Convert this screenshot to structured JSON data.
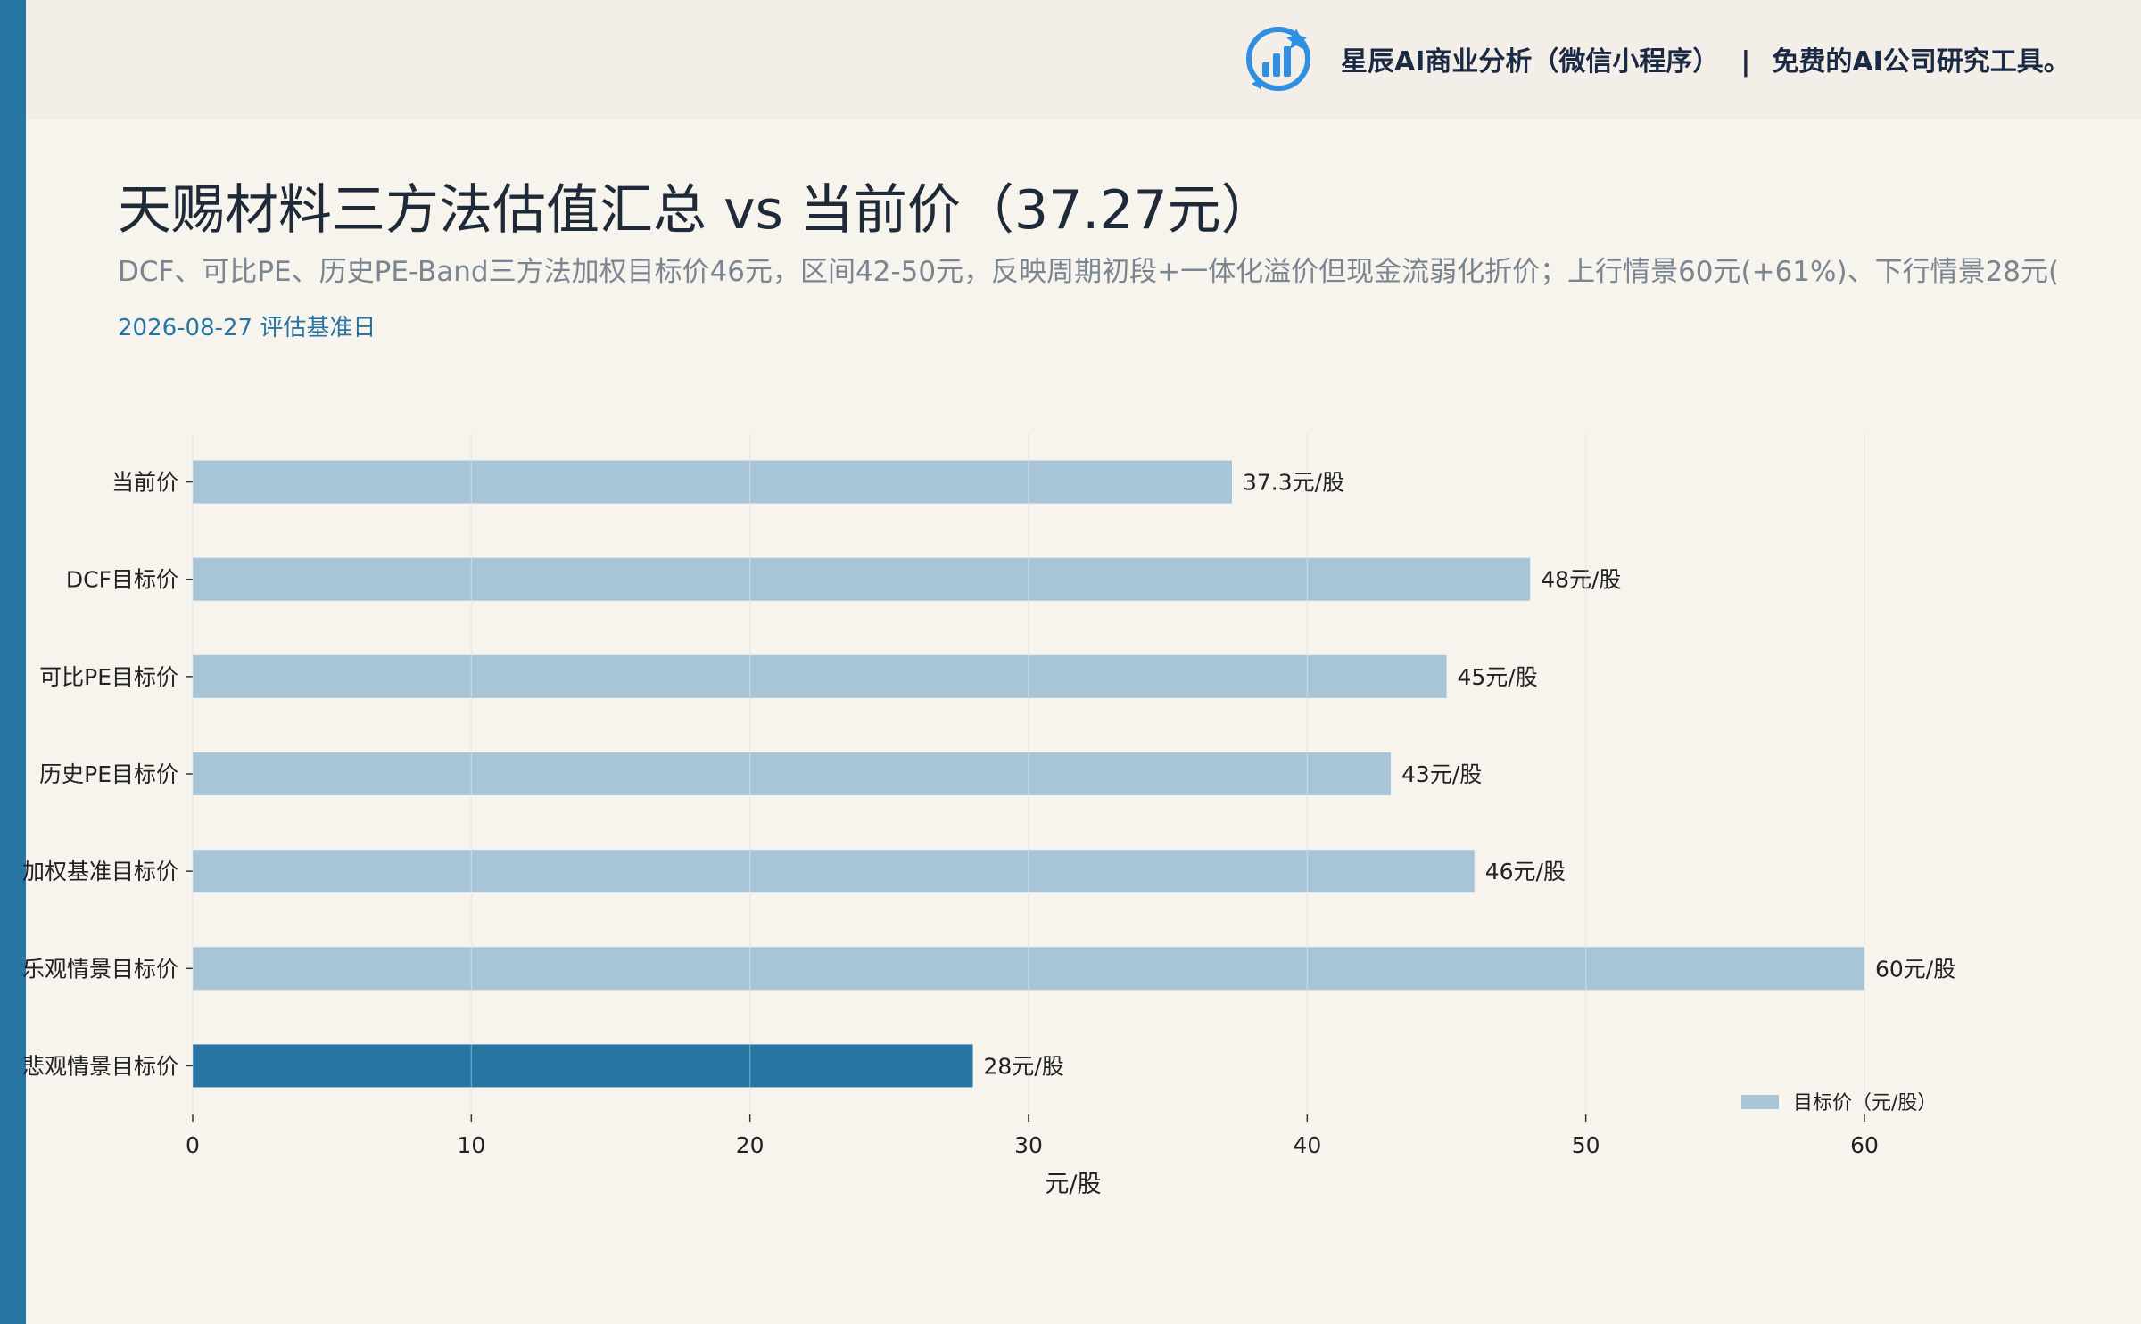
{
  "header": {
    "brand_name": "星辰AI商业分析（微信小程序）",
    "separator": "|",
    "brand_tagline": "免费的AI公司研究工具。",
    "logo_icon": "bar-chart-logo-icon"
  },
  "title": "天赐材料三方法估值汇总 vs 当前价（37.27元）",
  "subtitle": "DCF、可比PE、历史PE-Band三方法加权目标价46元，区间42-50元，反映周期初段+一体化溢价但现金流弱化折价；上行情景60元(+61%)、下行情景28元(",
  "date_label": "2026-08-27 评估基准日",
  "colors": {
    "accent": "#2775a3",
    "bar_light": "#a8c5d8",
    "bar_dark": "#2775a3",
    "background": "#f7f4ee"
  },
  "chart_data": {
    "type": "bar",
    "orientation": "horizontal",
    "categories": [
      "当前价",
      "DCF目标价",
      "可比PE目标价",
      "历史PE目标价",
      "加权基准目标价",
      "乐观情景目标价",
      "悲观情景目标价"
    ],
    "values": [
      37.3,
      48,
      45,
      43,
      46,
      60,
      28
    ],
    "data_labels": [
      "37.3元/股",
      "48元/股",
      "45元/股",
      "43元/股",
      "46元/股",
      "60元/股",
      "28元/股"
    ],
    "highlight_index": 6,
    "xlabel": "元/股",
    "xlim": [
      0,
      60
    ],
    "xticks": [
      0,
      10,
      20,
      30,
      40,
      50,
      60
    ],
    "grid": true,
    "legend": {
      "position": "bottom-right",
      "entries": [
        "目标价（元/股）"
      ]
    }
  }
}
